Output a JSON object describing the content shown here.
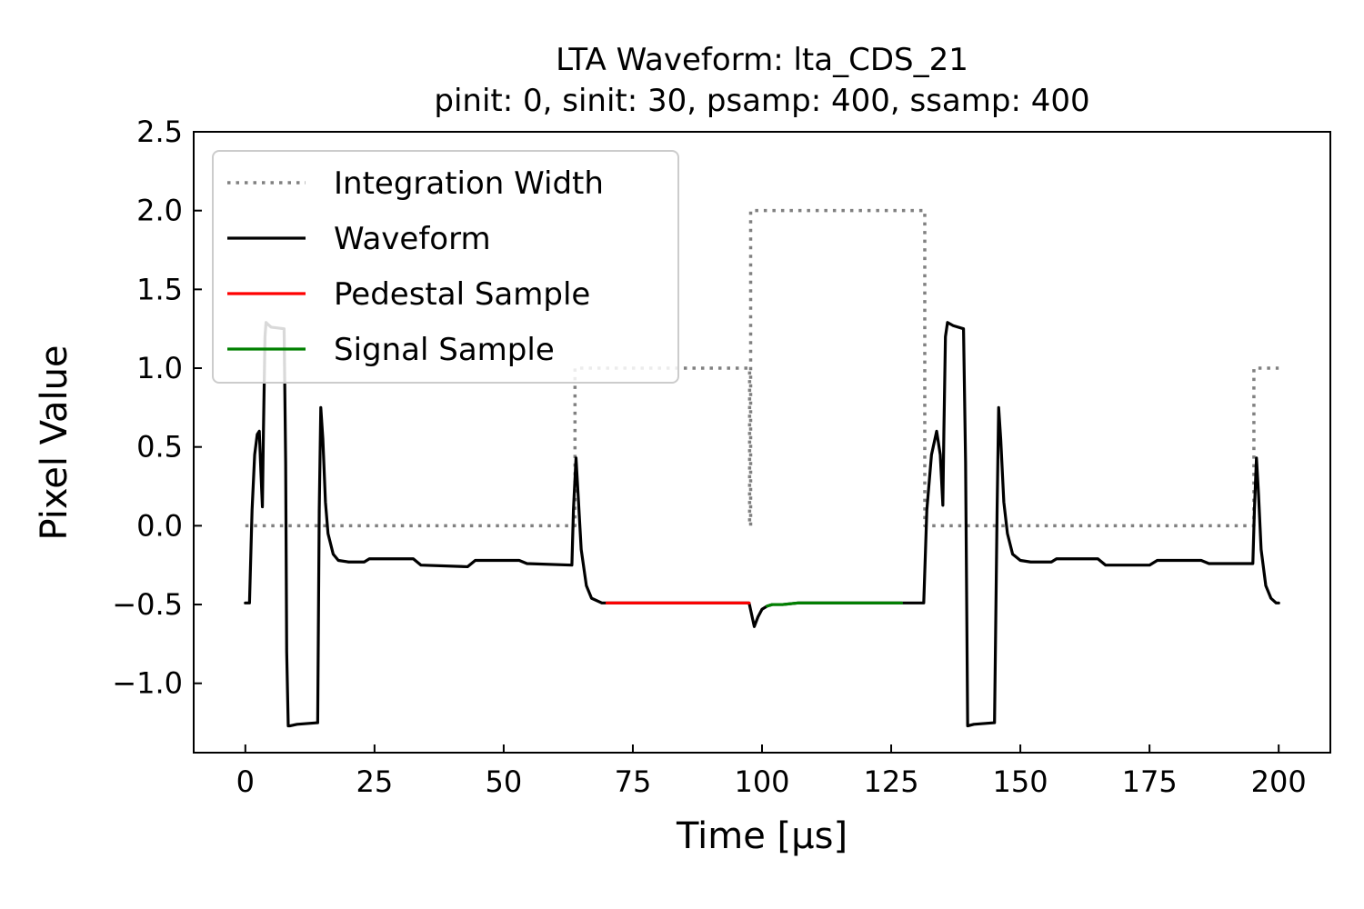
{
  "chart_data": {
    "type": "line",
    "title": "LTA Waveform: lta_CDS_21",
    "subtitle": "pinit: 0, sinit: 30, psamp: 400, ssamp: 400",
    "xlabel": "Time [μs]",
    "ylabel": "Pixel Value",
    "xlim": [
      -10,
      210
    ],
    "ylim": [
      -1.44,
      2.5
    ],
    "xticks": [
      0,
      25,
      50,
      75,
      100,
      125,
      150,
      175,
      200
    ],
    "xtick_labels": [
      "0",
      "25",
      "50",
      "75",
      "100",
      "125",
      "150",
      "175",
      "200"
    ],
    "yticks": [
      -1.0,
      -0.5,
      0.0,
      0.5,
      1.0,
      1.5,
      2.0,
      2.5
    ],
    "ytick_labels": [
      "−1.0",
      "−0.5",
      "0.0",
      "0.5",
      "1.0",
      "1.5",
      "2.0",
      "2.5"
    ],
    "grid": false,
    "legend_position": "top-left",
    "series": [
      {
        "name": "Integration Width",
        "color": "#808080",
        "style": "dotted",
        "x": [
          0,
          63.8,
          63.8,
          97.6,
          97.6,
          97.8,
          97.8,
          131.5,
          131.5,
          195.2,
          195.2,
          200
        ],
        "y": [
          0,
          0,
          1,
          1,
          0,
          0,
          2,
          2,
          0,
          0,
          1,
          1
        ]
      },
      {
        "name": "Waveform",
        "color": "#000000",
        "style": "solid",
        "x": [
          0,
          0.8,
          1.3,
          1.8,
          2.3,
          2.7,
          3.0,
          3.3,
          3.5,
          3.8,
          4.0,
          4.3,
          5.0,
          7.5,
          7.8,
          8.0,
          8.3,
          8.6,
          10.0,
          14.0,
          14.3,
          14.6,
          15.0,
          15.5,
          16.0,
          17.0,
          18.0,
          20.0,
          23.0,
          24.0,
          32.5,
          34.0,
          43.0,
          44.5,
          53.0,
          54.5,
          63.2,
          63.5,
          64.0,
          64.4,
          65.0,
          66.0,
          67.0,
          69.0,
          70.0,
          97.5,
          97.9,
          98.5,
          99.2,
          100.0,
          101.0,
          102.0,
          104.0,
          107.0,
          127.0,
          131.3,
          131.9,
          132.8,
          133.8,
          134.5,
          135.0,
          135.2,
          135.5,
          135.9,
          137.0,
          139.0,
          139.4,
          139.8,
          141.0,
          145.0,
          145.5,
          145.8,
          146.2,
          146.8,
          147.5,
          148.5,
          150.0,
          152.0,
          156.0,
          157.0,
          165.0,
          166.5,
          175.0,
          176.5,
          185.0,
          186.5,
          195.0,
          195.3,
          195.7,
          196.1,
          196.6,
          197.5,
          198.5,
          199.5,
          200.0
        ],
        "y": [
          -0.49,
          -0.49,
          0.1,
          0.45,
          0.58,
          0.6,
          0.35,
          0.12,
          0.6,
          1.2,
          1.29,
          1.28,
          1.26,
          1.25,
          0.4,
          -0.8,
          -1.27,
          -1.27,
          -1.26,
          -1.25,
          0.1,
          0.75,
          0.55,
          0.15,
          -0.05,
          -0.18,
          -0.22,
          -0.23,
          -0.23,
          -0.21,
          -0.21,
          -0.25,
          -0.26,
          -0.22,
          -0.22,
          -0.24,
          -0.25,
          0.1,
          0.43,
          0.2,
          -0.15,
          -0.38,
          -0.46,
          -0.49,
          -0.49,
          -0.49,
          -0.55,
          -0.64,
          -0.58,
          -0.53,
          -0.51,
          -0.5,
          -0.5,
          -0.49,
          -0.49,
          -0.49,
          0.1,
          0.45,
          0.6,
          0.45,
          0.13,
          0.6,
          1.2,
          1.29,
          1.27,
          1.25,
          0.4,
          -1.27,
          -1.26,
          -1.25,
          0.1,
          0.75,
          0.55,
          0.15,
          -0.05,
          -0.18,
          -0.22,
          -0.23,
          -0.23,
          -0.21,
          -0.21,
          -0.25,
          -0.25,
          -0.22,
          -0.22,
          -0.24,
          -0.24,
          0.1,
          0.43,
          0.2,
          -0.15,
          -0.38,
          -0.46,
          -0.49,
          -0.49
        ]
      },
      {
        "name": "Pedestal Sample",
        "color": "#ff0000",
        "style": "solid",
        "x": [
          70,
          97.5
        ],
        "y": [
          -0.49,
          -0.49
        ]
      },
      {
        "name": "Signal Sample",
        "color": "#008000",
        "style": "solid",
        "x": [
          101,
          102,
          104,
          107,
          127
        ],
        "y": [
          -0.51,
          -0.5,
          -0.5,
          -0.49,
          -0.49
        ]
      }
    ]
  }
}
